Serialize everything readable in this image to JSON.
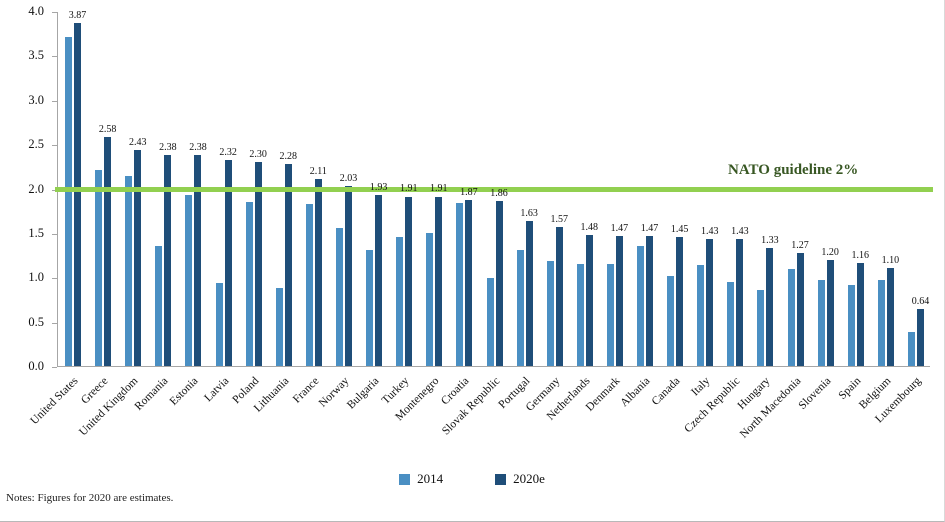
{
  "chart_data": {
    "type": "bar",
    "categories": [
      "United States",
      "Greece",
      "United Kingdom",
      "Romania",
      "Estonia",
      "Latvia",
      "Poland",
      "Lithuania",
      "France",
      "Norway",
      "Bulgaria",
      "Turkey",
      "Montenegro",
      "Croatia",
      "Slovak Republic",
      "Portugal",
      "Germany",
      "Netherlands",
      "Denmark",
      "Albania",
      "Canada",
      "Italy",
      "Czech Republic",
      "Hungary",
      "North Macedonia",
      "Slovenia",
      "Spain",
      "Belgium",
      "Luxembourg"
    ],
    "series": [
      {
        "name": "2014",
        "color": "#4a8fc3",
        "values": [
          3.71,
          2.21,
          2.14,
          1.35,
          1.93,
          0.94,
          1.85,
          0.88,
          1.82,
          1.55,
          1.31,
          1.45,
          1.5,
          1.84,
          0.99,
          1.31,
          1.18,
          1.15,
          1.15,
          1.35,
          1.01,
          1.14,
          0.95,
          0.86,
          1.09,
          0.97,
          0.91,
          0.97,
          0.38
        ]
      },
      {
        "name": "2020e",
        "color": "#1f4e79",
        "values": [
          3.87,
          2.58,
          2.43,
          2.38,
          2.38,
          2.32,
          2.3,
          2.28,
          2.11,
          2.03,
          1.93,
          1.91,
          1.91,
          1.87,
          1.86,
          1.63,
          1.57,
          1.48,
          1.47,
          1.47,
          1.45,
          1.43,
          1.43,
          1.33,
          1.27,
          1.2,
          1.16,
          1.1,
          0.64
        ]
      }
    ],
    "ylim": [
      0,
      4.0
    ],
    "yticks": [
      0,
      0.5,
      1.0,
      1.5,
      2.0,
      2.5,
      3.0,
      3.5,
      4.0
    ],
    "data_labels": {
      "series": "2020e",
      "decimals": 2
    },
    "guideline": {
      "value": 2.0,
      "label": "NATO guideline 2%",
      "color": "#92d050",
      "label_color": "#385723"
    },
    "legend_position": "bottom",
    "grid": false,
    "xlabel": "",
    "ylabel": ""
  },
  "legend": {
    "items": [
      {
        "label": "2014",
        "color": "#4a8fc3"
      },
      {
        "label": "2020e",
        "color": "#1f4e79"
      }
    ]
  },
  "notes": "Notes: Figures for 2020 are estimates."
}
